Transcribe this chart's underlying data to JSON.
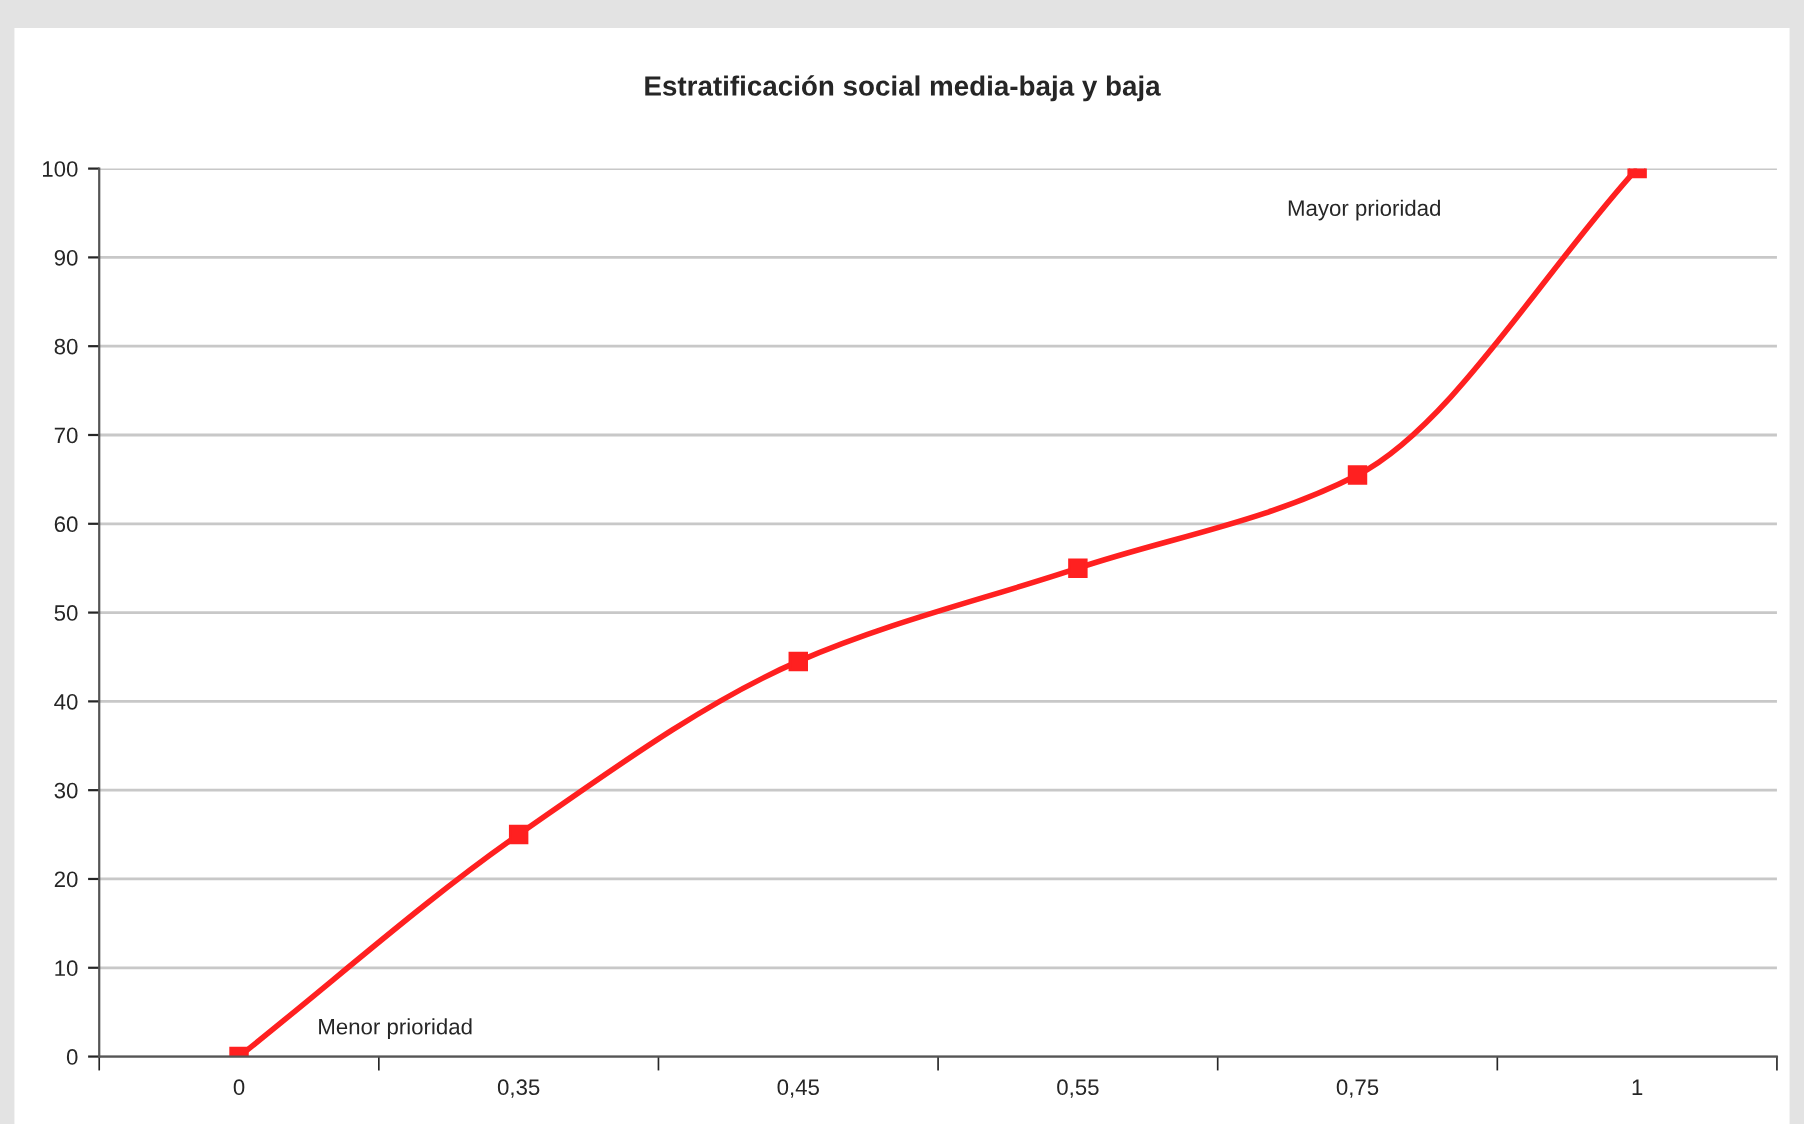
{
  "chart_data": {
    "type": "line",
    "title": "Estratificación social media-baja y baja",
    "categories": [
      "0",
      "0,35",
      "0,45",
      "0,55",
      "0,75",
      "1"
    ],
    "series": [
      {
        "color": "#ff2020",
        "values": [
          0,
          25,
          44.5,
          55,
          65.5,
          100
        ]
      }
    ],
    "ylim": [
      0,
      100
    ],
    "yticks": [
      0,
      10,
      20,
      30,
      40,
      50,
      60,
      70,
      80,
      90,
      100
    ],
    "grid": "y",
    "marker": "square",
    "line_style": "solid",
    "legend": false,
    "annotations": [
      "Menor prioridad",
      "Mayor prioridad"
    ]
  }
}
